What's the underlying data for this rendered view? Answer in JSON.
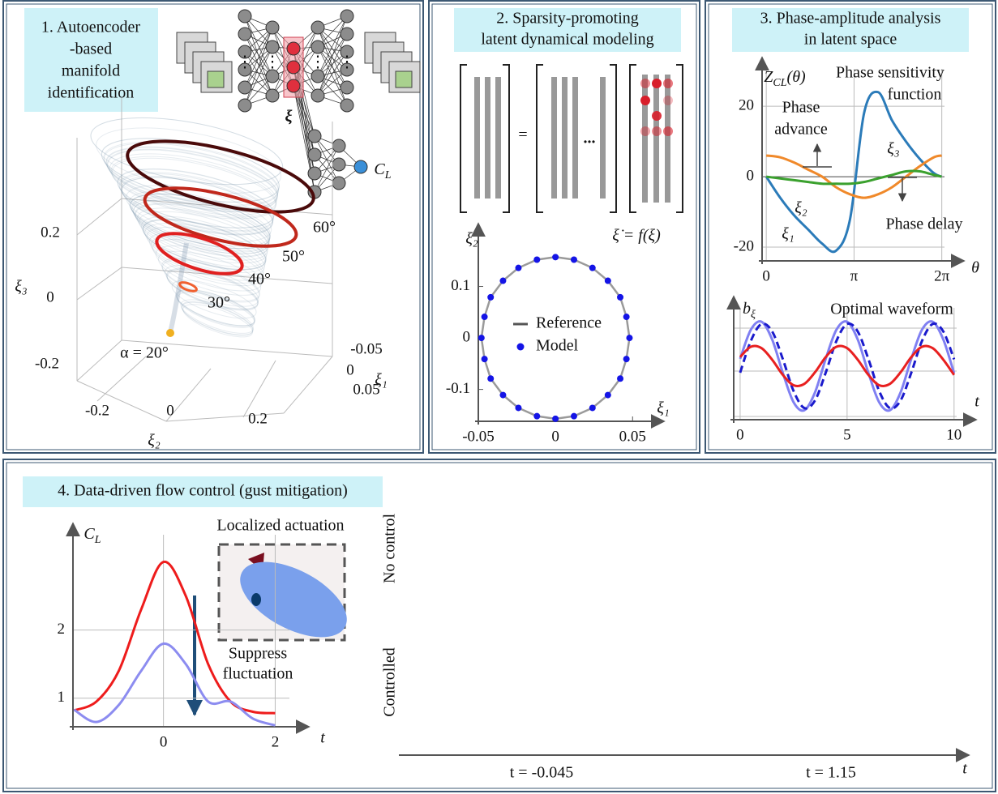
{
  "panel1": {
    "title": [
      "1. Autoencoder",
      "-based",
      "manifold",
      "identification"
    ],
    "latent_label": "ξ",
    "output_label": [
      "C",
      "L"
    ],
    "angle_labels": [
      "60°",
      "50°",
      "40°",
      "30°",
      "α = 20°"
    ],
    "axes": [
      {
        "label": "ξ₃",
        "ticks": [
          "0.2",
          "0",
          "-0.2"
        ]
      },
      {
        "label": "ξ₂",
        "ticks": [
          "-0.2",
          "0",
          "0.2"
        ]
      },
      {
        "label": "ξ₁",
        "ticks": [
          "-0.05",
          "0",
          "0.05"
        ]
      }
    ]
  },
  "panel2": {
    "title": [
      "2. Sparsity-promoting",
      "latent dynamical modeling"
    ],
    "equals": "=",
    "ellipsis": "...",
    "equation": "ξ̇ = f(ξ)"
  },
  "panel3": {
    "title": [
      "3. Phase-amplitude analysis",
      "in latent space"
    ]
  },
  "panel4": {
    "title": "4. Data-driven flow control (gust mitigation)",
    "inset_label": "Localized actuation",
    "arrow_label": [
      "Suppress",
      "fluctuation"
    ],
    "row_labels": [
      "No control",
      "Controlled"
    ],
    "time_labels": [
      "t = -0.045",
      "t = 1.15"
    ],
    "time_axis_label": "t"
  },
  "chart_data": [
    {
      "type": "scatter",
      "xlabel": "ξ₁",
      "ylabel": "ξ₂",
      "xlim": [
        -0.05,
        0.063
      ],
      "ylim": [
        -0.162,
        0.2
      ],
      "xticks": [
        -0.05,
        0,
        0.05
      ],
      "yticks": [
        -0.1,
        0,
        0.1
      ],
      "series": [
        {
          "name": "Reference",
          "color": "#9a9a9a",
          "mode": "line",
          "x": [
            0.048,
            0.046,
            0.042,
            0.034,
            0.024,
            0.012,
            0,
            -0.012,
            -0.024,
            -0.034,
            -0.042,
            -0.046,
            -0.048,
            -0.046,
            -0.042,
            -0.034,
            -0.024,
            -0.012,
            0,
            0.012,
            0.024,
            0.034,
            0.042,
            0.046,
            0.048
          ],
          "y": [
            0,
            0.041,
            0.079,
            0.111,
            0.136,
            0.152,
            0.157,
            0.152,
            0.136,
            0.111,
            0.079,
            0.041,
            0,
            -0.041,
            -0.079,
            -0.111,
            -0.136,
            -0.152,
            -0.157,
            -0.152,
            -0.136,
            -0.111,
            -0.079,
            -0.041,
            0
          ]
        },
        {
          "name": "Model",
          "color": "#1414e6",
          "mode": "markers",
          "x": [
            0.048,
            0.046,
            0.042,
            0.034,
            0.024,
            0.012,
            0,
            -0.012,
            -0.024,
            -0.034,
            -0.042,
            -0.046,
            -0.048,
            -0.046,
            -0.042,
            -0.034,
            -0.024,
            -0.012,
            0,
            0.012,
            0.024,
            0.034,
            0.042,
            0.046
          ],
          "y": [
            0,
            0.041,
            0.079,
            0.111,
            0.136,
            0.152,
            0.157,
            0.152,
            0.136,
            0.111,
            0.079,
            0.041,
            0,
            -0.041,
            -0.079,
            -0.111,
            -0.136,
            -0.152,
            -0.157,
            -0.152,
            -0.136,
            -0.111,
            -0.079,
            -0.041
          ]
        }
      ]
    },
    {
      "type": "line",
      "title": [
        "Phase sensitivity",
        "function"
      ],
      "ylabel": [
        "Z",
        "CL",
        "(θ)"
      ],
      "xlabel": "θ",
      "annotations": {
        "advance": [
          "Phase",
          "advance"
        ],
        "delay": "Phase delay"
      },
      "x": [
        0,
        0.5,
        1,
        1.5,
        2,
        2.5,
        3,
        3.5,
        4,
        4.5,
        5,
        5.5,
        6,
        6.28
      ],
      "xlim": [
        -0.15,
        6.67
      ],
      "ylim": [
        -23.9,
        30.6
      ],
      "xticks": [
        0,
        {
          "value": 3.1416,
          "label": "π"
        },
        {
          "value": 6.2832,
          "label": "2π"
        }
      ],
      "yticks": [
        -20,
        0,
        20
      ],
      "grid": true,
      "series": [
        {
          "name": "ξ₁",
          "color": "#2b7bb9",
          "values": [
            0,
            -6,
            -11,
            -15,
            -19,
            -21,
            -12,
            18,
            24,
            16,
            10,
            5,
            1,
            0
          ]
        },
        {
          "name": "ξ₂",
          "color": "#f0892a",
          "values": [
            6,
            5.5,
            4,
            2,
            0,
            -3,
            -5,
            -6,
            -5,
            -3,
            0,
            3,
            5.5,
            6
          ]
        },
        {
          "name": "ξ₃",
          "color": "#3ba12e",
          "values": [
            0,
            -0.5,
            -1,
            -1.5,
            -2,
            -2,
            -2,
            -1.5,
            -0.5,
            0.5,
            1.5,
            1.5,
            0.5,
            0
          ]
        }
      ]
    },
    {
      "type": "line",
      "title": "Optimal waveform",
      "ylabel": [
        "b",
        "ξ"
      ],
      "xlabel": "t",
      "x": [
        0,
        0.5,
        1,
        1.5,
        2,
        2.5,
        3,
        3.5,
        4,
        4.5,
        5,
        5.5,
        6,
        6.5,
        7,
        7.5,
        8,
        8.5,
        9,
        9.5,
        10
      ],
      "xlim": [
        -0.3,
        10.5
      ],
      "ylim": [
        -1.2,
        1.3
      ],
      "xticks": [
        0,
        5,
        10
      ],
      "grid": true,
      "series": [
        {
          "color": "#8080f2",
          "values": [
            0.16,
            0.81,
            0.99,
            0.59,
            -0.16,
            -0.81,
            -0.99,
            -0.59,
            0.16,
            0.81,
            0.99,
            0.59,
            -0.16,
            -0.81,
            -0.99,
            -0.59,
            0.16,
            0.81,
            0.99,
            0.59,
            -0.16
          ]
        },
        {
          "color": "#1a1acc",
          "dash": true,
          "values": [
            -0.15,
            0.56,
            0.94,
            0.77,
            0.15,
            -0.56,
            -0.94,
            -0.77,
            -0.15,
            0.56,
            0.94,
            0.77,
            0.15,
            -0.56,
            -0.94,
            -0.77,
            -0.15,
            0.56,
            0.94,
            0.77,
            0.15
          ]
        },
        {
          "color": "#e82020",
          "values": [
            0.2,
            0.43,
            0.4,
            0.14,
            -0.2,
            -0.43,
            -0.4,
            -0.14,
            0.2,
            0.43,
            0.4,
            0.14,
            -0.2,
            -0.43,
            -0.4,
            -0.14,
            0.2,
            0.43,
            0.4,
            0.14,
            -0.2
          ]
        }
      ]
    },
    {
      "type": "line",
      "ylabel": [
        "C",
        "L"
      ],
      "xlabel": "t",
      "x": [
        -1.6,
        -1.2,
        -0.8,
        -0.4,
        0,
        0.4,
        0.8,
        1.2,
        1.6,
        2
      ],
      "xlim": [
        -1.62,
        2.4
      ],
      "ylim": [
        0.58,
        3.4
      ],
      "xticks": [
        0,
        2
      ],
      "yticks": [
        1,
        2
      ],
      "grid": true,
      "series": [
        {
          "color": "#ee1c1c",
          "values": [
            0.82,
            0.95,
            1.4,
            2.3,
            3.0,
            2.5,
            1.5,
            0.95,
            0.8,
            0.78
          ]
        },
        {
          "color": "#8c8cf0",
          "values": [
            0.83,
            0.65,
            0.9,
            1.4,
            1.8,
            1.5,
            0.95,
            0.95,
            0.7,
            0.6
          ]
        }
      ]
    }
  ]
}
